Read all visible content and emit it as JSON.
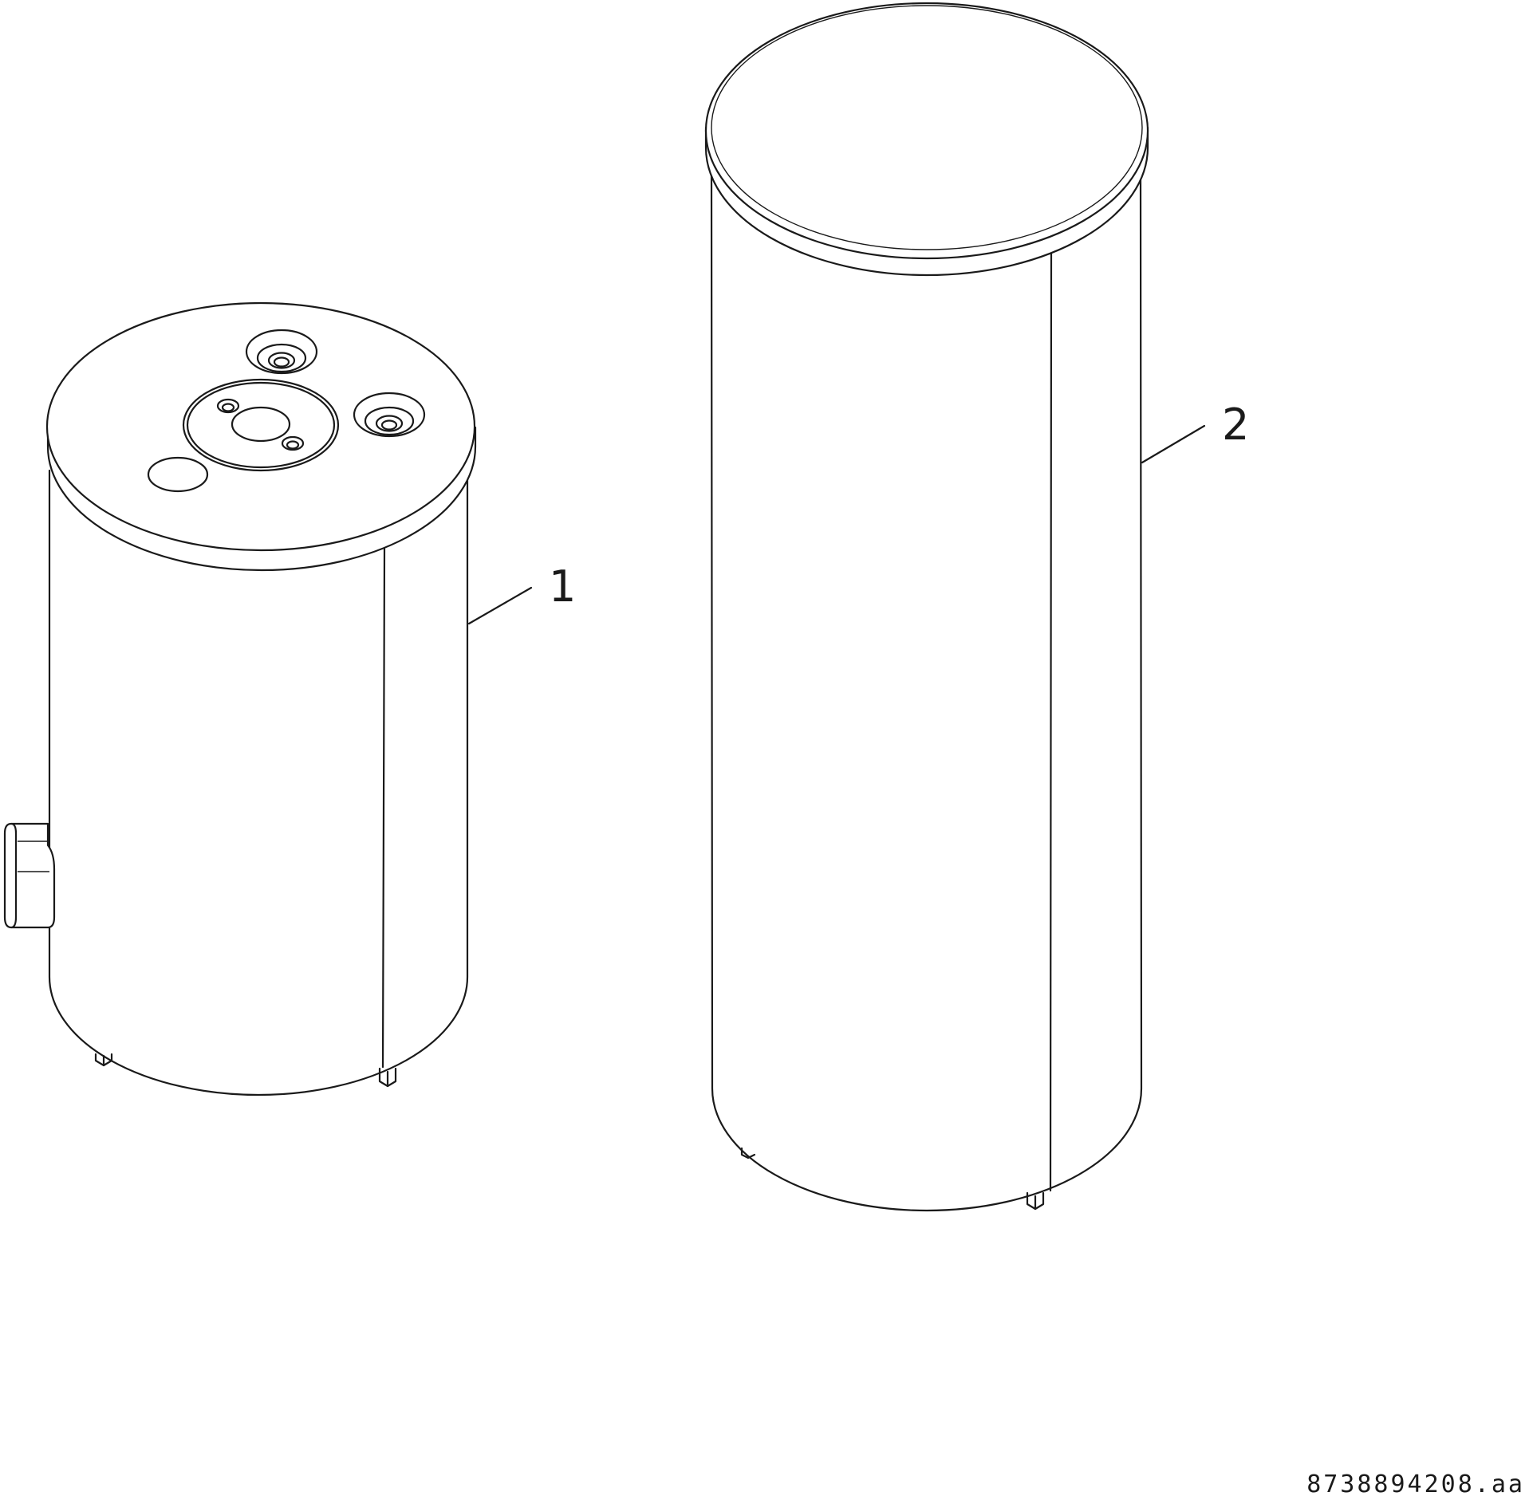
{
  "callouts": [
    {
      "label": "1",
      "target": "small-tank"
    },
    {
      "label": "2",
      "target": "tall-tank"
    }
  ],
  "drawing_number": "8738894208.aa",
  "line_color": "#1a1a1a",
  "background_color": "#ffffff"
}
